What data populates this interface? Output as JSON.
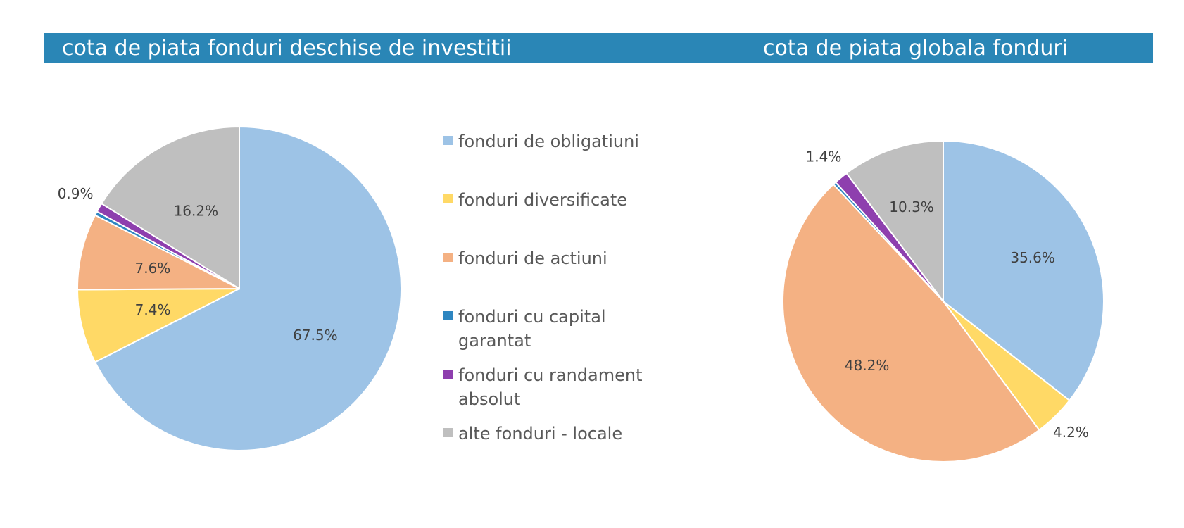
{
  "header": {
    "title_left": "cota de piata fonduri deschise de investitii",
    "title_right": "cota de piata globala fonduri",
    "background": "#2a86b6"
  },
  "legend": {
    "items": [
      {
        "label": "fonduri de obligatiuni",
        "color": "#9dc3e6"
      },
      {
        "label": "fonduri diversificate",
        "color": "#ffd966"
      },
      {
        "label": "fonduri de actiuni",
        "color": "#f4b183"
      },
      {
        "label": "fonduri cu capital garantat",
        "color": "#2e86c1"
      },
      {
        "label": "fonduri cu randament absolut",
        "color": "#8e3fae"
      },
      {
        "label": "alte fonduri - locale",
        "color": "#bfbfbf"
      }
    ]
  },
  "chart_data": [
    {
      "type": "pie",
      "title": "cota de piata fonduri deschise de investitii",
      "categories": [
        "fonduri de obligatiuni",
        "fonduri diversificate",
        "fonduri de actiuni",
        "fonduri cu capital garantat",
        "fonduri cu randament absolut",
        "alte fonduri - locale"
      ],
      "values": [
        67.5,
        7.4,
        7.6,
        0.4,
        0.9,
        16.2
      ],
      "labels": [
        "67.5%",
        "7.4%",
        "7.6%",
        "",
        "0.9%",
        "16.2%"
      ],
      "colors": [
        "#9dc3e6",
        "#ffd966",
        "#f4b183",
        "#2e86c1",
        "#8e3fae",
        "#bfbfbf"
      ],
      "legend": "right"
    },
    {
      "type": "pie",
      "title": "cota de piata globala fonduri",
      "categories": [
        "fonduri de obligatiuni",
        "fonduri diversificate",
        "fonduri de actiuni",
        "fonduri cu capital garantat",
        "fonduri cu randament absolut",
        "alte fonduri - locale"
      ],
      "values": [
        35.6,
        4.2,
        48.2,
        0.3,
        1.4,
        10.3
      ],
      "labels": [
        "35.6%",
        "4.2%",
        "48.2%",
        "",
        "1.4%",
        "10.3%"
      ],
      "colors": [
        "#9dc3e6",
        "#ffd966",
        "#f4b183",
        "#2e86c1",
        "#8e3fae",
        "#bfbfbf"
      ],
      "legend": "none"
    }
  ]
}
